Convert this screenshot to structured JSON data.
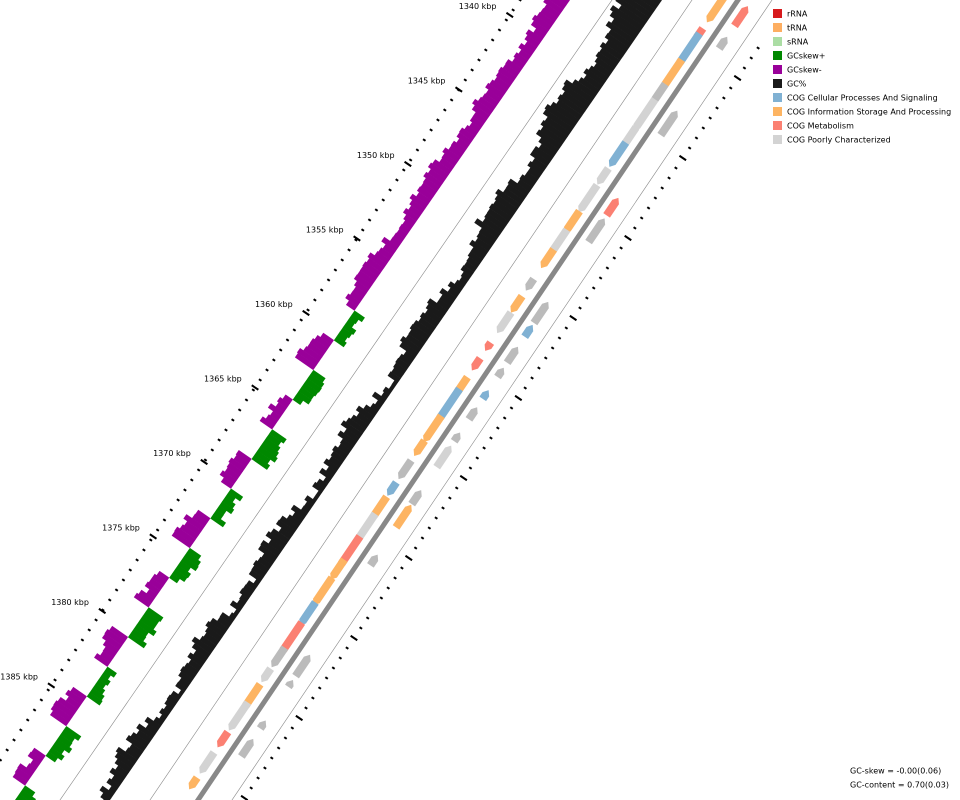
{
  "scale_labels": [
    "1340 kbp",
    "1345 kbp",
    "1350 kbp",
    "1355 kbp",
    "1360 kbp",
    "1365 kbp",
    "1370 kbp",
    "1375 kbp",
    "1380 kbp",
    "1385 kbp"
  ],
  "legend": [
    {
      "label": "rRNA",
      "color": "#d7191c"
    },
    {
      "label": "tRNA",
      "color": "#fdae61"
    },
    {
      "label": "sRNA",
      "color": "#abdda4"
    },
    {
      "label": "GCskew+",
      "color": "#008800"
    },
    {
      "label": "GCskew-",
      "color": "#990099"
    },
    {
      "label": "GC%",
      "color": "#1a1a1a"
    },
    {
      "label": "COG Cellular Processes And Signaling",
      "color": "#80b1d3"
    },
    {
      "label": "COG Information Storage And Processing",
      "color": "#fdb462"
    },
    {
      "label": "COG Metabolism",
      "color": "#fb8072"
    },
    {
      "label": "COG Poorly Characterized",
      "color": "#d3d3d3"
    }
  ],
  "stats": [
    "GC-skew = -0.00(0.06)",
    "GC-content = 0.70(0.03)"
  ]
}
